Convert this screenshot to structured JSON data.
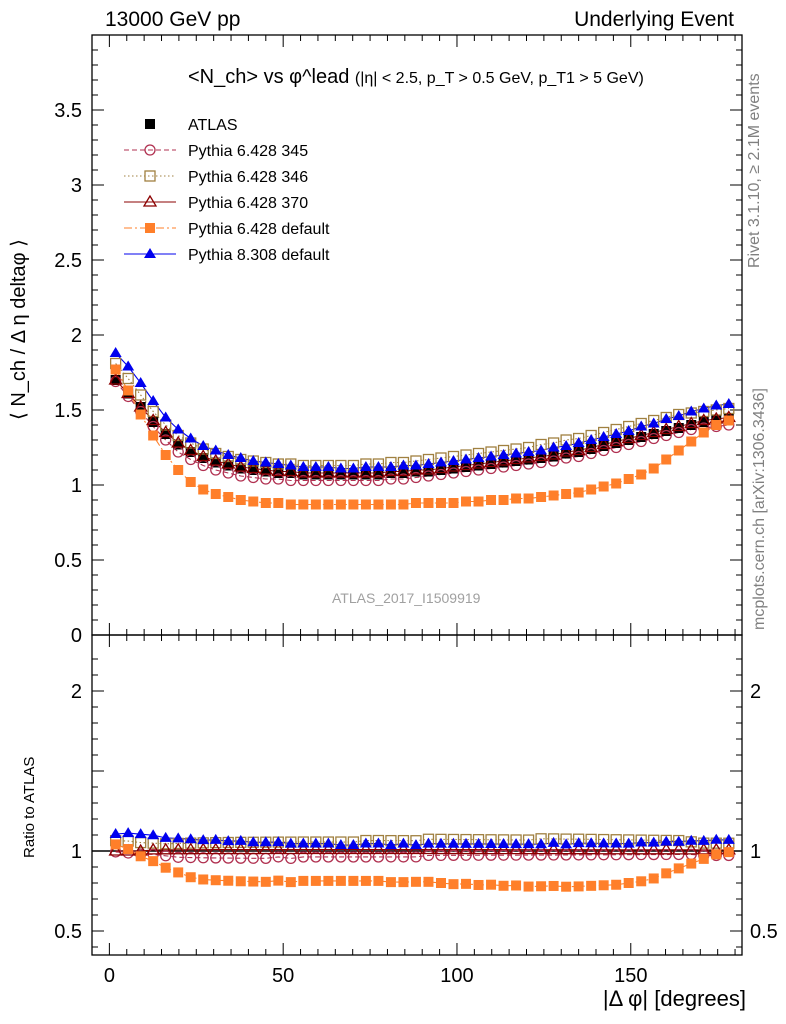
{
  "header": {
    "left": "13000 GeV pp",
    "right": "Underlying Event"
  },
  "plot_title": {
    "main": "<N_ch> vs φ^lead",
    "cuts": "(|η| < 2.5, p_T > 0.5 GeV, p_T1 > 5 GeV)"
  },
  "analysis_id": "ATLAS_2017_I1509919",
  "side_labels": {
    "rivet": "Rivet 3.1.10, ≥ 2.1M events",
    "mcplots": "mcplots.cern.ch [arXiv:1306.3436]"
  },
  "axes": {
    "ylabel_main": "⟨ N_ch / Δ η deltaφ ⟩",
    "ylabel_ratio": "Ratio to ATLAS",
    "xlabel": "|Δ φ| [degrees]"
  },
  "colors": {
    "atlas": "#000000",
    "p345": "#b03050",
    "p346": "#a08040",
    "p370": "#8b0000",
    "p6def": "#ff7f2a",
    "p8def": "#0000ee",
    "watermark": "#a0a0a0"
  },
  "chart_data": {
    "type": "scatter",
    "xlabel": "|Δ φ| [degrees]",
    "ylabel": "⟨ N_ch / Δ η deltaφ ⟩",
    "xlim": [
      -5,
      182
    ],
    "ylim": [
      0,
      4
    ],
    "ratio_ylim": [
      0.35,
      2.35
    ],
    "x_ticks": [
      0,
      50,
      100,
      150
    ],
    "y_ticks": [
      0.5,
      1,
      1.5,
      2,
      2.5,
      3,
      3.5
    ],
    "ratio_ticks": [
      0.5,
      1,
      2
    ],
    "x": [
      1.8,
      5.4,
      9.0,
      12.6,
      16.2,
      19.8,
      23.4,
      27.0,
      30.6,
      34.2,
      37.8,
      41.4,
      45.0,
      48.6,
      52.2,
      55.8,
      59.4,
      63.0,
      66.6,
      70.2,
      73.8,
      77.4,
      81.0,
      84.6,
      88.2,
      91.8,
      95.4,
      99.0,
      102.6,
      106.2,
      109.8,
      113.4,
      117.0,
      120.6,
      124.2,
      127.8,
      131.4,
      135.0,
      138.6,
      142.2,
      145.8,
      149.4,
      153.0,
      156.6,
      160.2,
      163.8,
      167.4,
      171.0,
      174.6,
      178.2
    ],
    "series": [
      {
        "name": "ATLAS",
        "marker": "filled-square",
        "line": "none",
        "values": [
          1.7,
          1.61,
          1.52,
          1.42,
          1.34,
          1.27,
          1.22,
          1.18,
          1.15,
          1.13,
          1.11,
          1.1,
          1.09,
          1.08,
          1.08,
          1.07,
          1.07,
          1.07,
          1.07,
          1.07,
          1.07,
          1.07,
          1.08,
          1.08,
          1.09,
          1.09,
          1.1,
          1.11,
          1.12,
          1.13,
          1.14,
          1.15,
          1.16,
          1.17,
          1.18,
          1.19,
          1.21,
          1.22,
          1.24,
          1.26,
          1.28,
          1.3,
          1.32,
          1.34,
          1.36,
          1.38,
          1.4,
          1.42,
          1.43,
          1.44
        ]
      },
      {
        "name": "Pythia 6.428 345",
        "marker": "open-circle",
        "line": "dashed",
        "values": [
          1.69,
          1.59,
          1.49,
          1.39,
          1.3,
          1.22,
          1.17,
          1.13,
          1.1,
          1.08,
          1.06,
          1.05,
          1.04,
          1.04,
          1.03,
          1.03,
          1.03,
          1.03,
          1.03,
          1.03,
          1.03,
          1.03,
          1.04,
          1.04,
          1.05,
          1.06,
          1.07,
          1.08,
          1.09,
          1.1,
          1.11,
          1.12,
          1.13,
          1.14,
          1.15,
          1.16,
          1.18,
          1.19,
          1.21,
          1.23,
          1.25,
          1.27,
          1.29,
          1.31,
          1.33,
          1.35,
          1.37,
          1.38,
          1.39,
          1.4
        ]
      },
      {
        "name": "Pythia 6.428 346",
        "marker": "open-square",
        "line": "dotted",
        "values": [
          1.81,
          1.71,
          1.6,
          1.49,
          1.4,
          1.33,
          1.28,
          1.24,
          1.21,
          1.19,
          1.17,
          1.16,
          1.15,
          1.14,
          1.14,
          1.13,
          1.13,
          1.13,
          1.13,
          1.13,
          1.14,
          1.14,
          1.15,
          1.15,
          1.16,
          1.17,
          1.18,
          1.19,
          1.2,
          1.21,
          1.22,
          1.23,
          1.24,
          1.25,
          1.27,
          1.28,
          1.3,
          1.31,
          1.33,
          1.35,
          1.37,
          1.39,
          1.41,
          1.43,
          1.45,
          1.47,
          1.48,
          1.49,
          1.5,
          1.51
        ]
      },
      {
        "name": "Pythia 6.428 370",
        "marker": "open-triangle",
        "line": "solid",
        "values": [
          1.7,
          1.61,
          1.52,
          1.43,
          1.35,
          1.28,
          1.23,
          1.19,
          1.16,
          1.14,
          1.12,
          1.11,
          1.1,
          1.09,
          1.09,
          1.08,
          1.08,
          1.08,
          1.08,
          1.08,
          1.08,
          1.08,
          1.09,
          1.09,
          1.1,
          1.1,
          1.11,
          1.12,
          1.13,
          1.14,
          1.15,
          1.16,
          1.17,
          1.18,
          1.19,
          1.2,
          1.22,
          1.23,
          1.25,
          1.27,
          1.29,
          1.31,
          1.33,
          1.35,
          1.37,
          1.39,
          1.41,
          1.43,
          1.44,
          1.45
        ]
      },
      {
        "name": "Pythia 6.428 default",
        "marker": "filled-square",
        "line": "dashdot",
        "values": [
          1.77,
          1.63,
          1.47,
          1.33,
          1.2,
          1.1,
          1.02,
          0.97,
          0.94,
          0.92,
          0.9,
          0.89,
          0.88,
          0.88,
          0.87,
          0.87,
          0.87,
          0.87,
          0.87,
          0.87,
          0.87,
          0.87,
          0.87,
          0.87,
          0.88,
          0.88,
          0.88,
          0.88,
          0.89,
          0.89,
          0.9,
          0.9,
          0.91,
          0.91,
          0.92,
          0.93,
          0.94,
          0.95,
          0.97,
          0.99,
          1.01,
          1.04,
          1.07,
          1.11,
          1.17,
          1.23,
          1.29,
          1.35,
          1.4,
          1.43
        ]
      },
      {
        "name": "Pythia 8.308 default",
        "marker": "filled-triangle",
        "line": "solid",
        "values": [
          1.88,
          1.79,
          1.68,
          1.56,
          1.45,
          1.37,
          1.31,
          1.26,
          1.23,
          1.2,
          1.18,
          1.16,
          1.15,
          1.14,
          1.13,
          1.12,
          1.12,
          1.12,
          1.11,
          1.11,
          1.12,
          1.12,
          1.12,
          1.13,
          1.13,
          1.14,
          1.15,
          1.16,
          1.17,
          1.18,
          1.19,
          1.2,
          1.21,
          1.22,
          1.23,
          1.25,
          1.26,
          1.28,
          1.3,
          1.32,
          1.34,
          1.36,
          1.39,
          1.41,
          1.44,
          1.46,
          1.49,
          1.51,
          1.53,
          1.54
        ]
      }
    ]
  }
}
